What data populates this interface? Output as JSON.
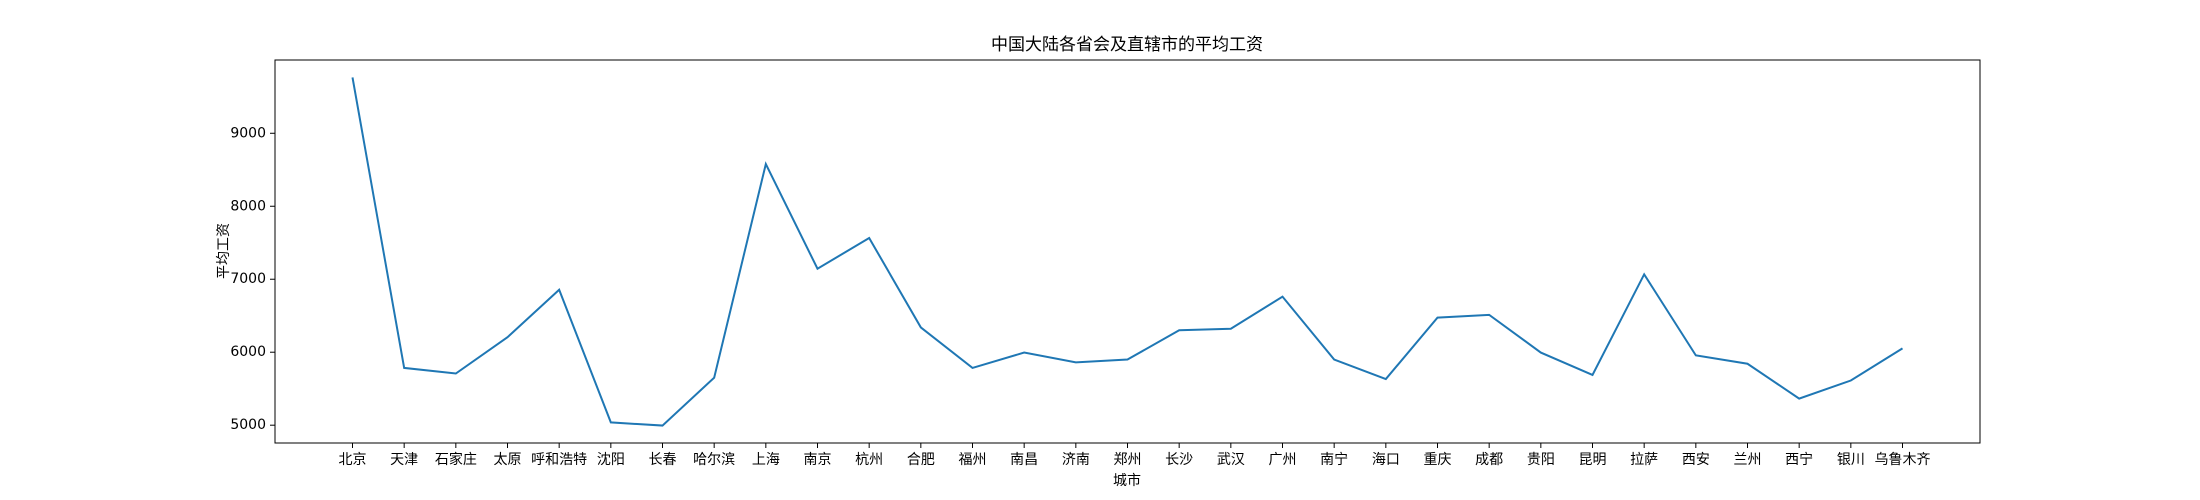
{
  "chart_data": {
    "type": "line",
    "title": "中国大陆各省会及直辖市的平均工资",
    "xlabel": "城市",
    "ylabel": "平均工资",
    "categories": [
      "北京",
      "天津",
      "石家庄",
      "太原",
      "呼和浩特",
      "沈阳",
      "长春",
      "哈尔滨",
      "上海",
      "南京",
      "杭州",
      "合肥",
      "福州",
      "南昌",
      "济南",
      "郑州",
      "长沙",
      "武汉",
      "广州",
      "南宁",
      "海口",
      "重庆",
      "成都",
      "贵阳",
      "昆明",
      "拉萨",
      "西安",
      "兰州",
      "西宁",
      "银川",
      "乌鲁木齐"
    ],
    "series": [
      {
        "name": "平均工资",
        "color": "#1f77b4",
        "values": [
          9765,
          5785,
          5708,
          6206,
          6856,
          5038,
          4995,
          5651,
          8579,
          7144,
          7565,
          6340,
          5785,
          5995,
          5861,
          5900,
          6301,
          6321,
          6761,
          5900,
          5632,
          6474,
          6512,
          5995,
          5689,
          7067,
          5957,
          5842,
          5364,
          5612,
          6053
        ]
      }
    ],
    "ylim": [
      4756,
      10004
    ],
    "yticks": [
      5000,
      6000,
      7000,
      8000,
      9000
    ]
  }
}
